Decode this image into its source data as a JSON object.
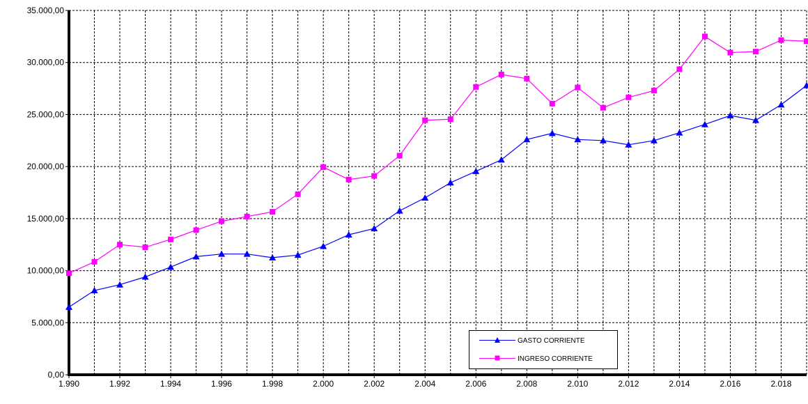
{
  "chart_data": {
    "type": "line",
    "x": [
      "1.990",
      "1.991",
      "1.992",
      "1.993",
      "1.994",
      "1.995",
      "1.996",
      "1.997",
      "1.998",
      "1.999",
      "2.000",
      "2.001",
      "2.002",
      "2.003",
      "2.004",
      "2.005",
      "2.006",
      "2.007",
      "2.008",
      "2.009",
      "2.010",
      "2.011",
      "2.012",
      "2.013",
      "2.014",
      "2.015",
      "2.016",
      "2.017",
      "2.018",
      "2.019"
    ],
    "x_tick_labels": [
      "1.990",
      "1.992",
      "1.994",
      "1.996",
      "1.998",
      "2.000",
      "2.002",
      "2.004",
      "2.006",
      "2.008",
      "2.010",
      "2.012",
      "2.014",
      "2.016",
      "2.018"
    ],
    "y_tick_labels": [
      "0,00",
      "5.000,00",
      "10.000,00",
      "15.000,00",
      "20.000,00",
      "25.000,00",
      "30.000,00",
      "35.000,00"
    ],
    "ylim": [
      0,
      35000
    ],
    "grid": true,
    "legend_position": "bottom-right",
    "series": [
      {
        "name": "GASTO CORRIENTE",
        "color": "#0000ff",
        "marker": "triangle",
        "values": [
          6500,
          8100,
          8650,
          9400,
          10350,
          11350,
          11600,
          11600,
          11250,
          11500,
          12350,
          13450,
          14050,
          15750,
          17000,
          18450,
          19550,
          20650,
          22600,
          23200,
          22600,
          22500,
          22100,
          22500,
          23250,
          24050,
          24900,
          24450,
          25950,
          27800
        ]
      },
      {
        "name": "INGRESO CORRIENTE",
        "color": "#ff00ff",
        "marker": "square",
        "values": [
          9750,
          10850,
          12500,
          12250,
          13000,
          13900,
          14750,
          15200,
          15650,
          17350,
          19950,
          18750,
          19100,
          21050,
          24450,
          24550,
          27650,
          28850,
          28450,
          26050,
          27600,
          25650,
          26650,
          27300,
          29350,
          32500,
          30950,
          31050,
          32150,
          32050
        ]
      }
    ]
  }
}
